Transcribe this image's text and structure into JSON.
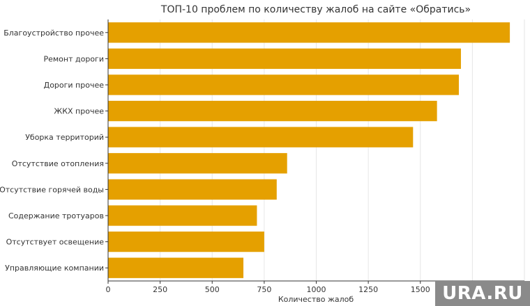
{
  "chart_data": {
    "type": "bar",
    "orientation": "horizontal",
    "title": "ТОП-10 проблем по количеству жалоб на сайте «Обратись»",
    "xlabel": "Количество жалоб",
    "ylabel": "",
    "categories": [
      "Благоустройство прочее",
      "Ремонт дороги",
      "Дороги прочее",
      "ЖКХ прочее",
      "Уборка территорий",
      "Отсутствие отопления",
      "Отсутствие горячей воды",
      "Содержание тротуаров",
      "Отсутствует освещение",
      "Управляющие компании"
    ],
    "values": [
      1930,
      1695,
      1685,
      1580,
      1465,
      860,
      810,
      715,
      750,
      650
    ],
    "xlim": [
      0,
      2000
    ],
    "xticks": [
      0,
      250,
      500,
      750,
      1000,
      1250,
      1500,
      1750,
      2000
    ],
    "xtick_labels": [
      "0",
      "250",
      "500",
      "750",
      "1000",
      "1250",
      "1500",
      "",
      ""
    ],
    "grid": true,
    "bar_color": "#E5A000"
  },
  "watermark": "URA.RU"
}
